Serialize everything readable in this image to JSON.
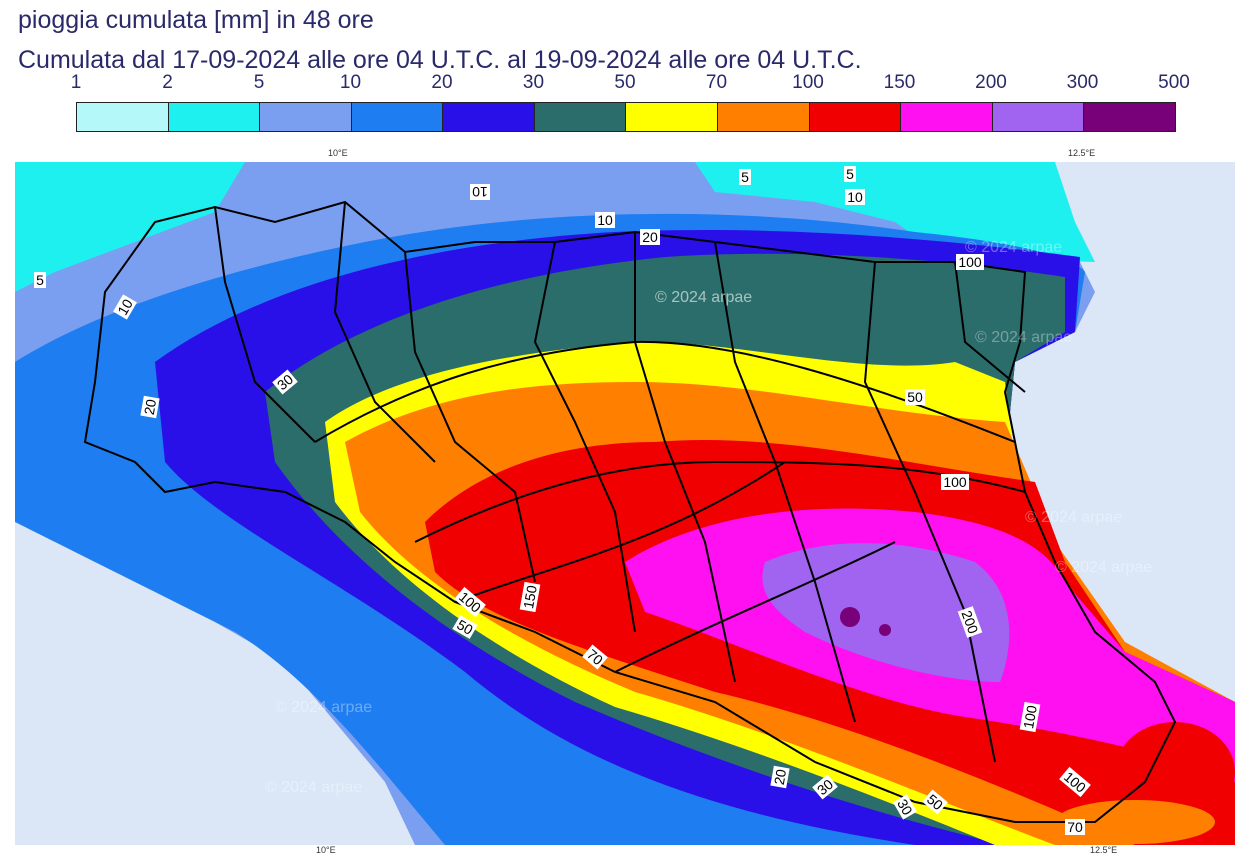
{
  "title": "pioggia cumulata [mm] in 48 ore",
  "subtitle": "Cumulata dal 17-09-2024 alle ore 04 U.T.C. al 19-09-2024 alle ore 04 U.T.C.",
  "legend": {
    "labels": [
      "1",
      "2",
      "5",
      "10",
      "20",
      "30",
      "50",
      "70",
      "100",
      "150",
      "200",
      "300",
      "500"
    ],
    "colors": [
      "#b4f8fa",
      "#1ef0f0",
      "#7b9ff0",
      "#1e7df0",
      "#2a10e8",
      "#2b6d6a",
      "#ffff00",
      "#ff8000",
      "#f00000",
      "#ff10f0",
      "#a064f0",
      "#780078"
    ]
  },
  "axis": {
    "lon_top": [
      "10°E",
      "12.5°E"
    ],
    "lon_bottom": [
      "10°E",
      "12.5°E"
    ]
  },
  "watermark": "© 2024 arpae",
  "contour_labels": [
    "5",
    "10",
    "5",
    "10",
    "20",
    "30",
    "50",
    "100",
    "150",
    "100",
    "50",
    "70",
    "100",
    "200",
    "100",
    "100",
    "70",
    "50",
    "30",
    "20",
    "10",
    "20",
    "30",
    "5",
    "10"
  ]
}
